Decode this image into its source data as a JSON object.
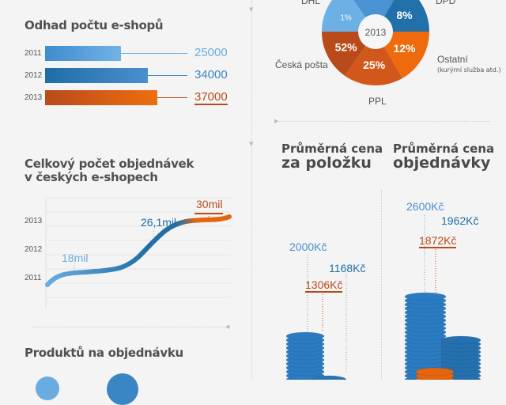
{
  "colors": {
    "light_blue": "#6aace0",
    "mid_blue": "#3a86c4",
    "dark_blue": "#1f6da6",
    "orange": "#e6650f",
    "dark_orange": "#b94a1a",
    "background": "#f4f4f4"
  },
  "chart_data": [
    {
      "type": "bar",
      "title": "Odhad počtu e-shopů",
      "orientation": "horizontal",
      "categories": [
        "2011",
        "2012",
        "2013"
      ],
      "values": [
        25000,
        34000,
        37000
      ],
      "labels": [
        "25000",
        "34000",
        "37000"
      ]
    },
    {
      "type": "pie",
      "center_label": "2013",
      "slices": [
        {
          "name": "Česká pošta",
          "value": 52,
          "label": "52%"
        },
        {
          "name": "PPL",
          "value": 25,
          "label": "25%"
        },
        {
          "name": "Ostatní",
          "note": "(kurýrní služba atd.)",
          "value": 12,
          "label": "12%"
        },
        {
          "name": "DPD",
          "value": 8,
          "label": "8%"
        },
        {
          "name": "DHL",
          "value": 1,
          "label": "1%"
        }
      ]
    },
    {
      "type": "line",
      "title_line1": "Celkový počet objednávek",
      "title_line2": "v českých e-shopech",
      "categories": [
        "2011",
        "2012",
        "2013"
      ],
      "values": [
        18,
        26.1,
        30
      ],
      "labels": [
        "18mil",
        "26,1mil",
        "30mil"
      ],
      "unit": "mil"
    },
    {
      "type": "bar",
      "title_line1": "Průměrná cena",
      "title_line2": "za položku",
      "values": [
        2000,
        1306,
        1168
      ],
      "labels": [
        "2000Kč",
        "1306Kč",
        "1168Kč"
      ]
    },
    {
      "type": "bar",
      "title_line1": "Průměrná cena",
      "title_line2": "objednávky",
      "values": [
        2600,
        1962,
        1872
      ],
      "labels": [
        "2600Kč",
        "1962Kč",
        "1872Kč"
      ]
    }
  ],
  "section4": {
    "title": "Produktů na objednávku"
  }
}
